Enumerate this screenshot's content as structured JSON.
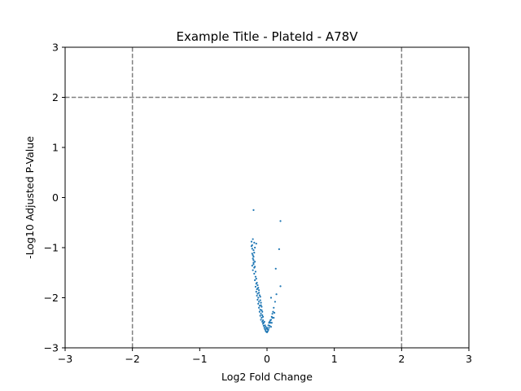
{
  "chart_data": {
    "type": "scatter",
    "title": "Example Title - PlateId - A78V",
    "xlabel": "Log2 Fold Change",
    "ylabel": "-Log10 Adjusted P-Value",
    "xlim": [
      -3,
      3
    ],
    "ylim": [
      -3,
      3
    ],
    "xticks": [
      -3,
      -2,
      -1,
      0,
      1,
      2,
      3
    ],
    "yticks": [
      -3,
      -2,
      -1,
      0,
      1,
      2,
      3
    ],
    "xtick_labels": [
      "−3",
      "−2",
      "−1",
      "0",
      "1",
      "2",
      "3"
    ],
    "ytick_labels": [
      "−3",
      "−2",
      "−1",
      "0",
      "1",
      "2",
      "3"
    ],
    "grid": false,
    "threshold_lines": {
      "x": [
        -2,
        2
      ],
      "y": [
        2
      ],
      "color": "#808080",
      "style": "dashed"
    },
    "point_color": "#1f77b4",
    "series": [
      {
        "points": [
          [
            -0.2,
            -0.25
          ],
          [
            0.2,
            -0.47
          ],
          [
            0.18,
            -1.03
          ],
          [
            0.2,
            -1.77
          ],
          [
            0.13,
            -1.42
          ],
          [
            0.14,
            -1.93
          ],
          [
            0.12,
            -2.08
          ],
          [
            0.1,
            -2.2
          ],
          [
            0.06,
            -2.0
          ],
          [
            -0.23,
            -0.88
          ],
          [
            -0.22,
            -0.95
          ],
          [
            -0.21,
            -0.83
          ],
          [
            -0.19,
            -0.9
          ],
          [
            -0.18,
            -1.0
          ],
          [
            -0.16,
            -0.92
          ],
          [
            -0.2,
            -1.05
          ],
          [
            -0.22,
            -1.12
          ],
          [
            -0.21,
            -1.22
          ],
          [
            -0.2,
            -1.3
          ],
          [
            -0.22,
            -1.36
          ],
          [
            -0.19,
            -1.4
          ],
          [
            -0.21,
            -1.45
          ],
          [
            -0.18,
            -1.28
          ],
          [
            -0.2,
            -1.18
          ],
          [
            -0.19,
            -1.52
          ],
          [
            -0.17,
            -1.58
          ],
          [
            -0.18,
            -1.65
          ],
          [
            -0.16,
            -1.72
          ],
          [
            -0.17,
            -1.78
          ],
          [
            -0.15,
            -1.83
          ],
          [
            -0.16,
            -1.88
          ],
          [
            -0.14,
            -1.92
          ],
          [
            -0.15,
            -1.96
          ],
          [
            -0.13,
            -2.0
          ],
          [
            -0.14,
            -2.04
          ],
          [
            -0.12,
            -2.08
          ],
          [
            -0.13,
            -2.12
          ],
          [
            -0.11,
            -2.16
          ],
          [
            -0.12,
            -2.2
          ],
          [
            -0.1,
            -2.24
          ],
          [
            -0.11,
            -2.28
          ],
          [
            -0.09,
            -2.32
          ],
          [
            -0.1,
            -2.36
          ],
          [
            -0.08,
            -2.4
          ],
          [
            -0.09,
            -2.44
          ],
          [
            -0.07,
            -2.48
          ],
          [
            -0.06,
            -2.52
          ],
          [
            -0.05,
            -2.56
          ],
          [
            -0.04,
            -2.6
          ],
          [
            -0.03,
            -2.63
          ],
          [
            -0.02,
            -2.66
          ],
          [
            -0.01,
            -2.68
          ],
          [
            0.0,
            -2.69
          ],
          [
            0.01,
            -2.67
          ],
          [
            0.02,
            -2.64
          ],
          [
            0.03,
            -2.6
          ],
          [
            0.04,
            -2.56
          ],
          [
            0.05,
            -2.5
          ],
          [
            0.06,
            -2.44
          ],
          [
            0.07,
            -2.38
          ],
          [
            0.08,
            -2.32
          ],
          [
            0.09,
            -2.28
          ],
          [
            0.11,
            -2.3
          ],
          [
            0.1,
            -2.4
          ],
          [
            -0.12,
            -1.85
          ],
          [
            -0.11,
            -1.95
          ],
          [
            -0.1,
            -2.05
          ],
          [
            -0.09,
            -2.15
          ],
          [
            -0.08,
            -2.25
          ],
          [
            -0.07,
            -2.35
          ],
          [
            -0.06,
            -2.45
          ],
          [
            -0.05,
            -2.5
          ],
          [
            -0.03,
            -2.55
          ],
          [
            -0.02,
            -2.58
          ],
          [
            0.0,
            -2.6
          ],
          [
            0.02,
            -2.55
          ],
          [
            0.03,
            -2.5
          ],
          [
            0.05,
            -2.45
          ],
          [
            0.07,
            -2.5
          ],
          [
            0.08,
            -2.4
          ],
          [
            -0.13,
            -1.8
          ],
          [
            -0.14,
            -1.75
          ],
          [
            -0.15,
            -1.7
          ],
          [
            -0.12,
            -1.9
          ],
          [
            -0.1,
            -1.98
          ],
          [
            -0.09,
            -2.1
          ],
          [
            -0.08,
            -2.18
          ],
          [
            -0.07,
            -2.28
          ],
          [
            -0.06,
            -2.38
          ],
          [
            -0.04,
            -2.48
          ],
          [
            -0.01,
            -2.62
          ],
          [
            0.01,
            -2.63
          ],
          [
            0.04,
            -2.48
          ],
          [
            0.06,
            -2.58
          ],
          [
            -0.17,
            -1.48
          ],
          [
            -0.18,
            -1.38
          ],
          [
            -0.2,
            -1.25
          ],
          [
            -0.21,
            -1.15
          ],
          [
            -0.19,
            -1.1
          ],
          [
            -0.23,
            -0.97
          ],
          [
            -0.22,
            -1.02
          ],
          [
            -0.2,
            -1.33
          ],
          [
            -0.16,
            -1.62
          ],
          [
            -0.14,
            -1.82
          ]
        ]
      }
    ]
  }
}
